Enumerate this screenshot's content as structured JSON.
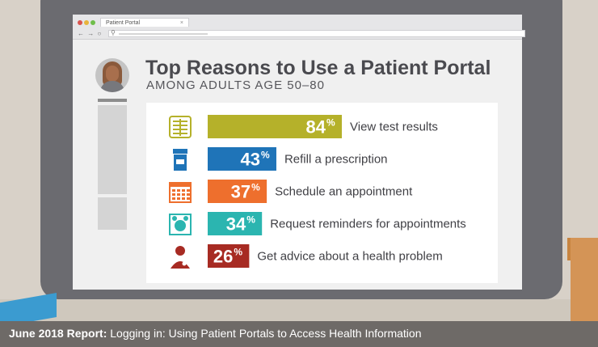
{
  "browser": {
    "tab_title": "Patient Portal",
    "tab_close": "×",
    "nav_icons": "← → ○",
    "search_icon": "search-icon"
  },
  "header": {
    "title": "Top Reasons to Use a Patient Portal",
    "subtitle": "AMONG ADULTS AGE 50–80"
  },
  "footer": {
    "report_label": "June 2018 Report:",
    "report_title": "Logging in: Using Patient Portals to Access Health Information"
  },
  "colors": {
    "olive": "#b5b12a",
    "blue": "#1f74b8",
    "orange": "#ee6f2d",
    "teal": "#2bb5b0",
    "red": "#a72b23",
    "page_bg": "#d8d1c8",
    "monitor": "#6b6b70",
    "text_dark": "#4a4a4f"
  },
  "chart_data": {
    "type": "bar",
    "orientation": "horizontal",
    "title": "Top Reasons to Use a Patient Portal",
    "subtitle": "AMONG ADULTS AGE 50–80",
    "categories": [
      "View test results",
      "Refill a prescription",
      "Schedule an appointment",
      "Request reminders for appointments",
      "Get advice about a health problem"
    ],
    "values": [
      84,
      43,
      37,
      34,
      26
    ],
    "unit": "%",
    "icons": [
      "x-ray-icon",
      "prescription-bottle-icon",
      "calendar-icon",
      "alarm-clock-icon",
      "doctor-icon"
    ],
    "bar_colors": [
      "#b5b12a",
      "#1f74b8",
      "#ee6f2d",
      "#2bb5b0",
      "#a72b23"
    ],
    "xlim": [
      0,
      100
    ],
    "grid": false,
    "legend": "none"
  }
}
